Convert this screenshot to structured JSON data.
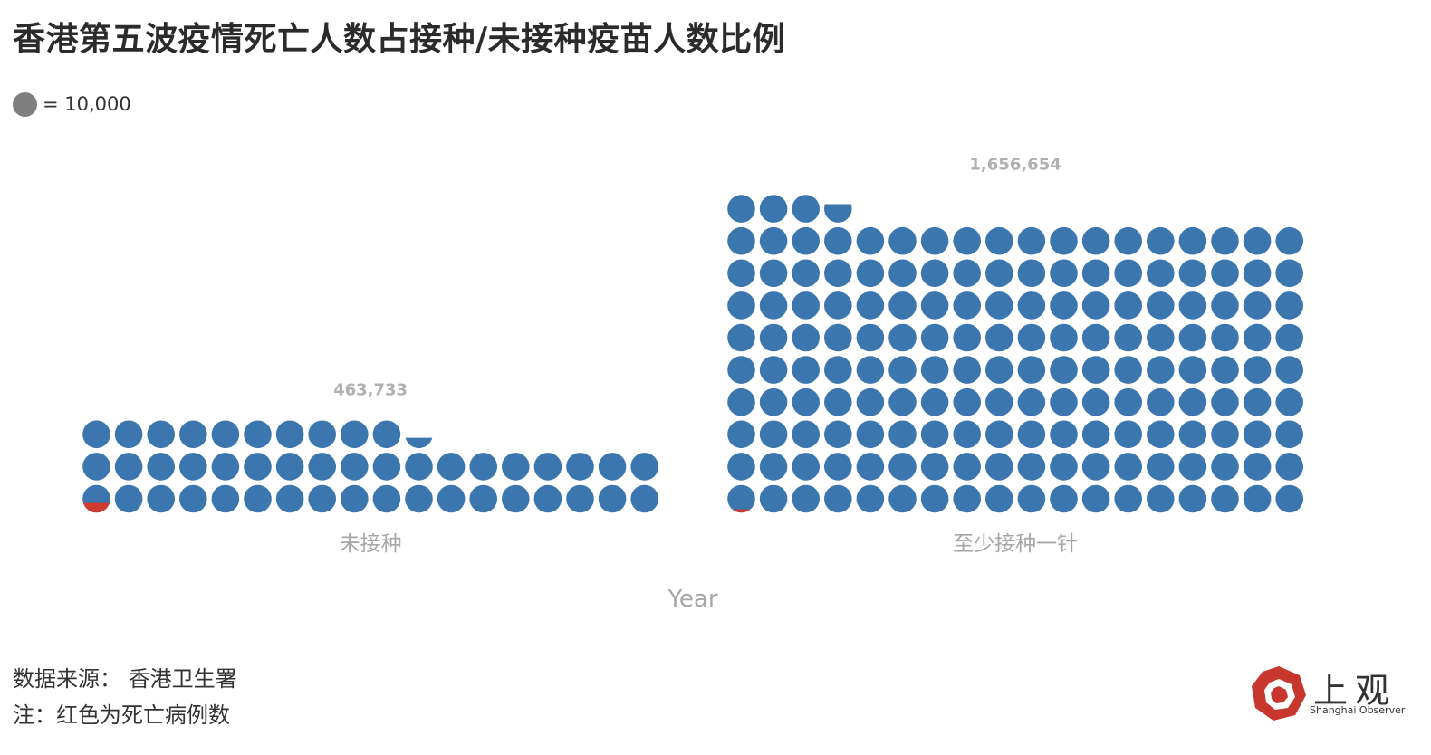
{
  "title": "香港第五波疫情死亡人数占接种/未接种疫苗人数比例",
  "legend": {
    "color": "#7f7f7f",
    "label": "= 10,000"
  },
  "colors": {
    "population": "#3b76ae",
    "deaths": "#d13a2f",
    "value_label": "#b0b0b0",
    "category_label": "#a6a6a6"
  },
  "chart_data": {
    "type": "waffle",
    "unit": 10000,
    "xlabel": "Year",
    "categories": [
      "未接种",
      "至少接种一针"
    ],
    "values": [
      463733,
      1656654
    ],
    "value_labels": [
      "463,733",
      "1,656,654"
    ],
    "deaths": [
      3500,
      1200
    ]
  },
  "source": {
    "line1": "数据来源： 香港卫生署",
    "line2": "注：红色为死亡病例数"
  },
  "logo": {
    "cn": "上观",
    "en": "Shanghai Observer"
  }
}
